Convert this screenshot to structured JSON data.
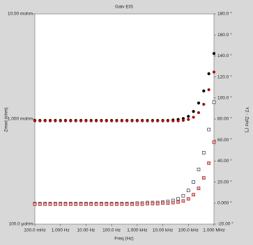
{
  "chart_data": {
    "type": "scatter",
    "title": "Galv EIS",
    "x_label": "Freq (Hz)",
    "y_label": "Zmod (ohm)",
    "y2_label": "Y2 - Zphz (°)",
    "x_scale": "log",
    "y_scale": "log",
    "xlim": [
      0.1,
      1000000
    ],
    "ylim": [
      0.0001,
      0.01
    ],
    "y2lim": [
      -20,
      180
    ],
    "xticks": [
      {
        "value": 0.1,
        "label": "100.0 mHz"
      },
      {
        "value": 1,
        "label": "1.000 Hz"
      },
      {
        "value": 10,
        "label": "10.00 Hz"
      },
      {
        "value": 100,
        "label": "100.0 Hz"
      },
      {
        "value": 1000,
        "label": "1.000 kHz"
      },
      {
        "value": 10000,
        "label": "10.00 kHz"
      },
      {
        "value": 100000,
        "label": "100.0 kHz"
      },
      {
        "value": 1000000,
        "label": "1.000 MHz"
      }
    ],
    "yticks": [
      {
        "value": 0.0001,
        "label": "100.0 µohm"
      },
      {
        "value": 0.001,
        "label": "1.000 mohm"
      },
      {
        "value": 0.01,
        "label": "10.00 mohm"
      }
    ],
    "y2ticks": [
      {
        "value": -20,
        "label": "-20.00 °"
      },
      {
        "value": 0,
        "label": "0.000 °"
      },
      {
        "value": 20,
        "label": "20.00 °"
      },
      {
        "value": 40,
        "label": "40.00 °"
      },
      {
        "value": 60,
        "label": "60.00 °"
      },
      {
        "value": 80,
        "label": "80.00 °"
      },
      {
        "value": 100,
        "label": "100.0 °"
      },
      {
        "value": 120,
        "label": "120.0 °"
      },
      {
        "value": 140,
        "label": "140.0 °"
      },
      {
        "value": 160,
        "label": "160.0 °"
      },
      {
        "value": 180,
        "label": "180.0 °"
      }
    ],
    "x": [
      0.1,
      0.158,
      0.251,
      0.398,
      0.631,
      1,
      1.58,
      2.51,
      3.98,
      6.31,
      10,
      15.8,
      25.1,
      39.8,
      63.1,
      100,
      158,
      251,
      398,
      631,
      1000,
      1580,
      2510,
      3980,
      6310,
      10000,
      15800,
      25100,
      39800,
      63100,
      100000,
      158000,
      251000,
      398000,
      631000,
      1000000
    ],
    "series": [
      {
        "color": "#000000",
        "marker": "circle",
        "axis": "y",
        "values": [
          0.00097,
          0.00097,
          0.00097,
          0.00097,
          0.00097,
          0.00097,
          0.00097,
          0.00097,
          0.00097,
          0.00097,
          0.00097,
          0.00097,
          0.00097,
          0.00097,
          0.00097,
          0.00097,
          0.00097,
          0.00097,
          0.00097,
          0.00097,
          0.00097,
          0.00097,
          0.00097,
          0.00097,
          0.00097,
          0.00097,
          0.00097,
          0.00098,
          0.00099,
          0.00101,
          0.00106,
          0.00118,
          0.00142,
          0.00185,
          0.0027,
          0.0042
        ]
      },
      {
        "color": "#a01414",
        "marker": "circle",
        "axis": "y",
        "values": [
          0.00096,
          0.00096,
          0.00096,
          0.00096,
          0.00096,
          0.00096,
          0.00096,
          0.00096,
          0.00096,
          0.00096,
          0.00096,
          0.00096,
          0.00096,
          0.00096,
          0.00096,
          0.00096,
          0.00096,
          0.00096,
          0.00096,
          0.00096,
          0.00096,
          0.00096,
          0.00096,
          0.00096,
          0.00096,
          0.00096,
          0.00096,
          0.00096,
          0.00096,
          0.00097,
          0.00099,
          0.00104,
          0.00115,
          0.00138,
          0.0019,
          0.0028
        ]
      },
      {
        "color": "#2a2a4a",
        "marker": "square",
        "fill": "#ffffff",
        "axis": "y2",
        "values": [
          -0.5,
          -0.5,
          -0.5,
          -0.5,
          -0.5,
          -0.5,
          -0.5,
          -0.5,
          -0.5,
          -0.5,
          -0.5,
          -0.5,
          -0.5,
          -0.5,
          -0.5,
          -0.5,
          -0.5,
          -0.5,
          -0.5,
          -0.5,
          0,
          0,
          0.5,
          0.5,
          0.5,
          1,
          1.5,
          2.5,
          4,
          7,
          12,
          20,
          32,
          48,
          70,
          96
        ]
      },
      {
        "color": "#a01414",
        "marker": "square",
        "fill": "#f0b0b0",
        "axis": "y2",
        "values": [
          -1,
          -1,
          -1,
          -1,
          -1,
          -1,
          -1,
          -1,
          -1,
          -1,
          -1,
          -1,
          -1,
          -1,
          -1,
          -1,
          -1,
          -1,
          -1,
          -1,
          -1,
          -1,
          -0.5,
          -0.5,
          -0.5,
          0,
          0,
          0.5,
          1,
          2,
          4,
          8,
          14,
          24,
          38,
          58
        ]
      }
    ]
  }
}
